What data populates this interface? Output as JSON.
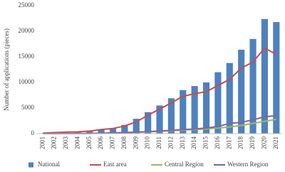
{
  "chart_data": {
    "type": "bar",
    "y_label": "Number of applications (pieces)",
    "categories": [
      "2001",
      "2002",
      "2003",
      "2004",
      "2005",
      "2006",
      "2007",
      "2008",
      "2009",
      "2010",
      "2011",
      "2012",
      "2013",
      "2014",
      "2015",
      "2016",
      "2017",
      "2018",
      "2019",
      "2020",
      "2021"
    ],
    "series": [
      {
        "name": "National",
        "type": "bar",
        "color": "#4f81bd",
        "values": [
          50,
          100,
          200,
          300,
          400,
          700,
          1000,
          1700,
          2900,
          4200,
          5500,
          6900,
          8500,
          9300,
          10000,
          12000,
          13800,
          16400,
          18500,
          22400,
          21800
        ]
      },
      {
        "name": "East area",
        "type": "line",
        "color": "#c0504d",
        "values": [
          100,
          200,
          300,
          350,
          500,
          800,
          1000,
          1500,
          2300,
          3600,
          4800,
          6000,
          7300,
          7800,
          8200,
          9400,
          10600,
          12800,
          14000,
          16700,
          15500
        ]
      },
      {
        "name": "Central Region",
        "type": "line",
        "color": "#9bbb59",
        "values": [
          0,
          0,
          10,
          20,
          30,
          50,
          100,
          150,
          250,
          350,
          450,
          550,
          700,
          800,
          900,
          1100,
          1300,
          1600,
          2000,
          2400,
          2800
        ]
      },
      {
        "name": "Western Region",
        "type": "line",
        "color": "#8064a2",
        "values": [
          0,
          0,
          10,
          20,
          40,
          80,
          150,
          200,
          300,
          400,
          500,
          650,
          800,
          900,
          1100,
          1400,
          2000,
          2200,
          2700,
          3300,
          3500
        ]
      }
    ],
    "ylim": [
      0,
      25000
    ],
    "yticks": [
      0,
      5000,
      10000,
      15000,
      20000,
      25000
    ],
    "grid": false
  }
}
